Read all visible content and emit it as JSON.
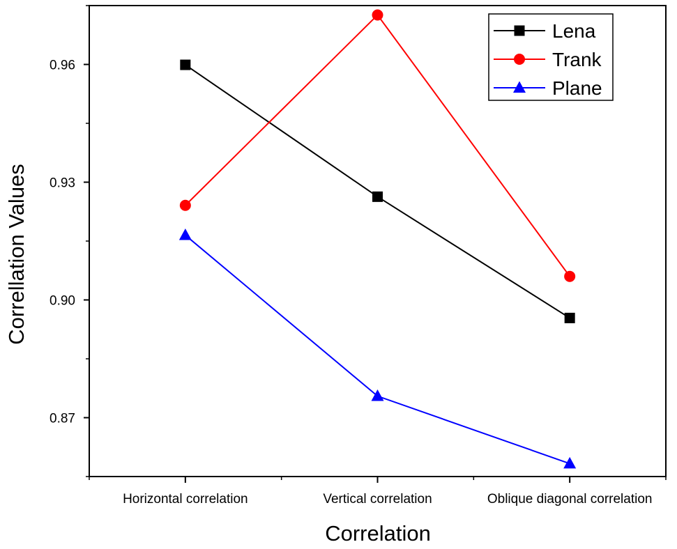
{
  "chart_data": {
    "type": "line",
    "title": "",
    "xlabel": "Correlation",
    "ylabel": "Correllation Values",
    "categories": [
      "Horizontal correlation",
      "Vertical correlation",
      "Oblique diagonal correlation"
    ],
    "ylim": [
      0.855,
      0.975
    ],
    "yticks": [
      0.87,
      0.9,
      0.93,
      0.96
    ],
    "ytick_labels": [
      "0.87",
      "0.90",
      "0.93",
      "0.96"
    ],
    "grid": false,
    "legend_position": "top-right",
    "series": [
      {
        "name": "Lena",
        "color": "#000000",
        "marker": "square",
        "values": [
          0.9599,
          0.9263,
          0.8954
        ]
      },
      {
        "name": "Trank",
        "color": "#ff0000",
        "marker": "circle",
        "values": [
          0.9241,
          0.9726,
          0.906
        ]
      },
      {
        "name": "Plane",
        "color": "#0000ff",
        "marker": "triangle",
        "values": [
          0.9165,
          0.8755,
          0.8583
        ]
      }
    ]
  }
}
